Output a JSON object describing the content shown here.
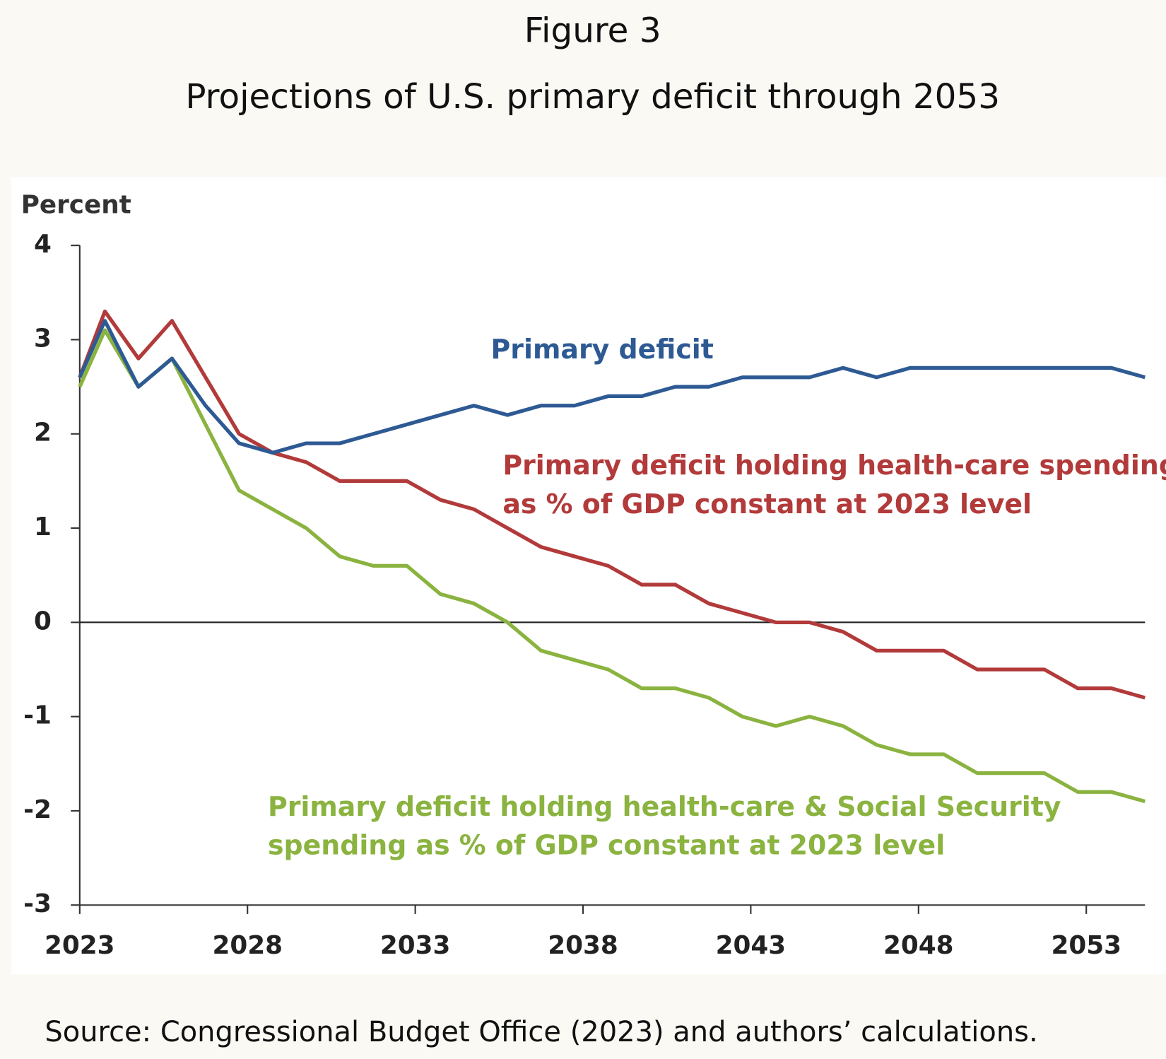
{
  "chart_data": {
    "type": "line",
    "title": "Figure 3",
    "subtitle": "Projections of U.S. primary deficit through 2053",
    "y_label": "Percent",
    "source": "Source: Congressional Budget Office (2023) and authors’ calculations.",
    "x": [
      2023,
      2023.75,
      2024.75,
      2025.75,
      2026.75,
      2027.75,
      2028.75,
      2029.75,
      2030.75,
      2031.75,
      2032.75,
      2033.75,
      2034.75,
      2035.75,
      2036.75,
      2037.75,
      2038.75,
      2039.75,
      2040.75,
      2041.75,
      2042.75,
      2043.75,
      2044.75,
      2045.75,
      2046.75,
      2047.75,
      2048.75,
      2049.75,
      2050.75,
      2051.75,
      2052.75,
      2053.75,
      2054.75
    ],
    "series": [
      {
        "label_lines": [
          "Primary deficit"
        ],
        "color": "#2e5a94",
        "values": [
          2.6,
          3.2,
          2.5,
          2.8,
          2.3,
          1.9,
          1.8,
          1.9,
          1.9,
          2.0,
          2.1,
          2.2,
          2.3,
          2.2,
          2.3,
          2.3,
          2.4,
          2.4,
          2.5,
          2.5,
          2.6,
          2.6,
          2.6,
          2.7,
          2.6,
          2.7,
          2.7,
          2.7,
          2.7,
          2.7,
          2.7,
          2.7,
          2.6
        ]
      },
      {
        "label_lines": [
          "Primary deficit holding health-care spending",
          "as % of GDP constant at 2023 level"
        ],
        "color": "#b23a3a",
        "values": [
          2.6,
          3.3,
          2.8,
          3.2,
          2.6,
          2.0,
          1.8,
          1.7,
          1.5,
          1.5,
          1.5,
          1.3,
          1.2,
          1.0,
          0.8,
          0.7,
          0.6,
          0.4,
          0.4,
          0.2,
          0.1,
          0.0,
          0.0,
          -0.1,
          -0.3,
          -0.3,
          -0.3,
          -0.5,
          -0.5,
          -0.5,
          -0.7,
          -0.7,
          -0.8
        ]
      },
      {
        "label_lines": [
          "Primary deficit holding health-care & Social Security",
          "spending as % of GDP constant at 2023 level"
        ],
        "color": "#8ab33f",
        "values": [
          2.5,
          3.1,
          2.5,
          2.8,
          2.1,
          1.4,
          1.2,
          1.0,
          0.7,
          0.6,
          0.6,
          0.3,
          0.2,
          0.0,
          -0.3,
          -0.4,
          -0.5,
          -0.7,
          -0.7,
          -0.8,
          -1.0,
          -1.1,
          -1.0,
          -1.1,
          -1.3,
          -1.4,
          -1.4,
          -1.6,
          -1.6,
          -1.6,
          -1.8,
          -1.8,
          -1.9
        ]
      }
    ],
    "xlim": [
      2023,
      2054.75
    ],
    "xticks": [
      2023,
      2028,
      2033,
      2038,
      2043,
      2048,
      2053
    ],
    "ylim": [
      -3,
      4
    ],
    "yticks": [
      -3,
      -2,
      -1,
      0,
      1,
      2,
      3,
      4
    ]
  }
}
